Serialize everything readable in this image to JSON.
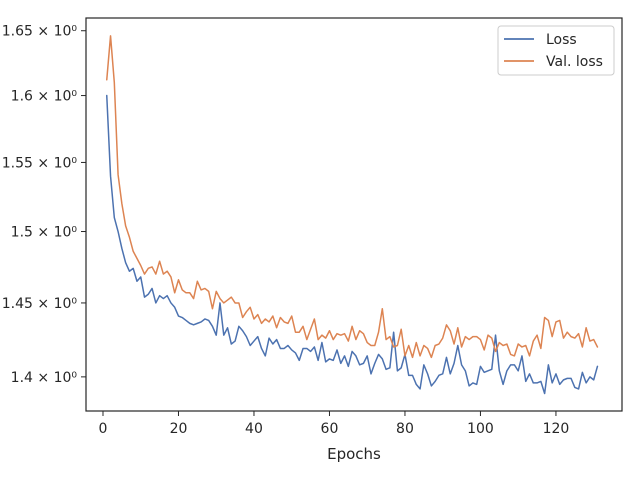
{
  "chart_data": {
    "type": "line",
    "xlabel": "Epochs",
    "ylabel": "",
    "xlim": [
      -4.5,
      137.5
    ],
    "ylim": [
      1.3775,
      1.66
    ],
    "y_scale": "log",
    "grid": false,
    "legend_position": "top-right",
    "x_ticks": [
      0,
      20,
      40,
      60,
      80,
      100,
      120
    ],
    "x_tick_labels": [
      "0",
      "20",
      "40",
      "60",
      "80",
      "100",
      "120"
    ],
    "y_ticks": [
      1.4,
      1.45,
      1.5,
      1.55,
      1.6,
      1.65
    ],
    "y_tick_labels": [
      "1.4 × 10⁰",
      "1.45 × 10⁰",
      "1.5 × 10⁰",
      "1.55 × 10⁰",
      "1.6 × 10⁰",
      "1.65 × 10⁰"
    ],
    "series": [
      {
        "name": "Loss",
        "color": "#4c72b0",
        "x": [
          1,
          2,
          3,
          4,
          5,
          6,
          7,
          8,
          9,
          10,
          11,
          12,
          13,
          14,
          15,
          16,
          17,
          18,
          19,
          20,
          21,
          22,
          23,
          24,
          25,
          26,
          27,
          28,
          29,
          30,
          31,
          32,
          33,
          34,
          35,
          36,
          37,
          38,
          39,
          40,
          41,
          42,
          43,
          44,
          45,
          46,
          47,
          48,
          49,
          50,
          51,
          52,
          53,
          54,
          55,
          56,
          57,
          58,
          59,
          60,
          61,
          62,
          63,
          64,
          65,
          66,
          67,
          68,
          69,
          70,
          71,
          72,
          73,
          74,
          75,
          76,
          77,
          78,
          79,
          80,
          81,
          82,
          83,
          84,
          85,
          86,
          87,
          88,
          89,
          90,
          91,
          92,
          93,
          94,
          95,
          96,
          97,
          98,
          99,
          100,
          101,
          102,
          103,
          104,
          105,
          106,
          107,
          108,
          109,
          110,
          111,
          112,
          113,
          114,
          115,
          116,
          117,
          118,
          119,
          120,
          121,
          122,
          123,
          124,
          125,
          126,
          127,
          128,
          129,
          130,
          131
        ],
        "y": [
          1.6,
          1.54,
          1.51,
          1.5,
          1.488,
          1.478,
          1.472,
          1.474,
          1.465,
          1.468,
          1.454,
          1.456,
          1.46,
          1.45,
          1.455,
          1.453,
          1.455,
          1.45,
          1.447,
          1.441,
          1.44,
          1.438,
          1.436,
          1.435,
          1.436,
          1.437,
          1.439,
          1.438,
          1.434,
          1.428,
          1.45,
          1.428,
          1.433,
          1.422,
          1.424,
          1.434,
          1.431,
          1.427,
          1.421,
          1.424,
          1.427,
          1.419,
          1.414,
          1.426,
          1.422,
          1.425,
          1.419,
          1.419,
          1.421,
          1.418,
          1.416,
          1.411,
          1.419,
          1.419,
          1.417,
          1.42,
          1.411,
          1.423,
          1.41,
          1.412,
          1.411,
          1.418,
          1.409,
          1.414,
          1.407,
          1.417,
          1.414,
          1.408,
          1.409,
          1.414,
          1.402,
          1.409,
          1.415,
          1.412,
          1.405,
          1.406,
          1.43,
          1.404,
          1.406,
          1.415,
          1.401,
          1.401,
          1.395,
          1.392,
          1.408,
          1.402,
          1.394,
          1.397,
          1.401,
          1.402,
          1.413,
          1.402,
          1.409,
          1.421,
          1.408,
          1.404,
          1.394,
          1.396,
          1.395,
          1.407,
          1.403,
          1.404,
          1.405,
          1.428,
          1.404,
          1.395,
          1.404,
          1.408,
          1.408,
          1.404,
          1.414,
          1.397,
          1.402,
          1.396,
          1.396,
          1.397,
          1.389,
          1.408,
          1.396,
          1.402,
          1.395,
          1.398,
          1.399,
          1.399,
          1.393,
          1.392,
          1.403,
          1.396,
          1.4,
          1.398,
          1.407
        ]
      },
      {
        "name": "Val. loss",
        "color": "#dd8452",
        "x": [
          1,
          2,
          3,
          4,
          5,
          6,
          7,
          8,
          9,
          10,
          11,
          12,
          13,
          14,
          15,
          16,
          17,
          18,
          19,
          20,
          21,
          22,
          23,
          24,
          25,
          26,
          27,
          28,
          29,
          30,
          31,
          32,
          33,
          34,
          35,
          36,
          37,
          38,
          39,
          40,
          41,
          42,
          43,
          44,
          45,
          46,
          47,
          48,
          49,
          50,
          51,
          52,
          53,
          54,
          55,
          56,
          57,
          58,
          59,
          60,
          61,
          62,
          63,
          64,
          65,
          66,
          67,
          68,
          69,
          70,
          71,
          72,
          73,
          74,
          75,
          76,
          77,
          78,
          79,
          80,
          81,
          82,
          83,
          84,
          85,
          86,
          87,
          88,
          89,
          90,
          91,
          92,
          93,
          94,
          95,
          96,
          97,
          98,
          99,
          100,
          101,
          102,
          103,
          104,
          105,
          106,
          107,
          108,
          109,
          110,
          111,
          112,
          113,
          114,
          115,
          116,
          117,
          118,
          119,
          120,
          121,
          122,
          123,
          124,
          125,
          126,
          127,
          128,
          129,
          130,
          131
        ],
        "y": [
          1.612,
          1.646,
          1.61,
          1.541,
          1.52,
          1.504,
          1.496,
          1.486,
          1.481,
          1.476,
          1.47,
          1.474,
          1.475,
          1.47,
          1.479,
          1.47,
          1.472,
          1.468,
          1.457,
          1.466,
          1.459,
          1.457,
          1.457,
          1.453,
          1.465,
          1.459,
          1.46,
          1.458,
          1.446,
          1.458,
          1.453,
          1.45,
          1.452,
          1.454,
          1.45,
          1.45,
          1.44,
          1.444,
          1.447,
          1.439,
          1.442,
          1.436,
          1.439,
          1.437,
          1.441,
          1.433,
          1.44,
          1.437,
          1.436,
          1.441,
          1.43,
          1.43,
          1.434,
          1.425,
          1.432,
          1.439,
          1.425,
          1.428,
          1.426,
          1.431,
          1.425,
          1.429,
          1.428,
          1.429,
          1.424,
          1.434,
          1.425,
          1.431,
          1.429,
          1.423,
          1.421,
          1.421,
          1.43,
          1.446,
          1.425,
          1.427,
          1.42,
          1.421,
          1.432,
          1.414,
          1.421,
          1.413,
          1.423,
          1.414,
          1.421,
          1.419,
          1.413,
          1.421,
          1.422,
          1.426,
          1.435,
          1.431,
          1.422,
          1.433,
          1.42,
          1.427,
          1.425,
          1.427,
          1.427,
          1.425,
          1.418,
          1.428,
          1.426,
          1.417,
          1.423,
          1.421,
          1.422,
          1.415,
          1.414,
          1.422,
          1.42,
          1.421,
          1.414,
          1.424,
          1.428,
          1.419,
          1.44,
          1.438,
          1.427,
          1.437,
          1.438,
          1.426,
          1.43,
          1.427,
          1.426,
          1.429,
          1.42,
          1.433,
          1.424,
          1.425,
          1.42
        ]
      }
    ]
  }
}
